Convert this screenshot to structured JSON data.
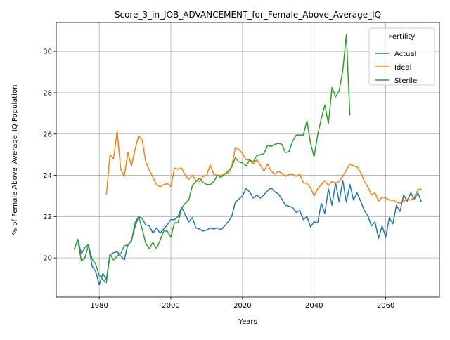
{
  "chart_data": {
    "type": "line",
    "title": "Score_3_in_JOB_ADVANCEMENT_for_Female_Above_Average_IQ",
    "xlabel": "Years",
    "ylabel": "% of Female Above_Average_IQ Population",
    "xlim": [
      1968,
      2075
    ],
    "ylim": [
      18.1,
      31.4
    ],
    "xticks": [
      1980,
      2000,
      2020,
      2040,
      2060
    ],
    "yticks": [
      20,
      22,
      24,
      26,
      28,
      30
    ],
    "grid": true,
    "legend": {
      "title": "Fertility",
      "placement": "top-right"
    },
    "series": [
      {
        "name": "Actual",
        "color": "#1f77b4",
        "x": [
          1973,
          1974,
          1975,
          1976,
          1977,
          1978,
          1979,
          1980,
          1981,
          1982,
          1983,
          1984,
          1985,
          1986,
          1987,
          1988,
          1989,
          1990,
          1991,
          1992,
          1993,
          1994,
          1995,
          1996,
          1997,
          1998,
          1999,
          2000,
          2001,
          2002,
          2003,
          2004,
          2005,
          2006,
          2007,
          2008,
          2009,
          2010,
          2011,
          2012,
          2013,
          2014,
          2015,
          2016,
          2017,
          2018,
          2019,
          2020,
          2021,
          2022,
          2023,
          2024,
          2025,
          2026,
          2027,
          2028,
          2029,
          2030,
          2031,
          2032,
          2033,
          2034,
          2035,
          2036,
          2037,
          2038,
          2039,
          2040,
          2041,
          2042,
          2043,
          2044,
          2045,
          2046,
          2047,
          2048,
          2049,
          2050,
          2051,
          2052,
          2053,
          2054,
          2055,
          2056,
          2057,
          2058,
          2059,
          2060,
          2061,
          2062,
          2063,
          2064,
          2065,
          2066,
          2067,
          2068,
          2069,
          2070
        ],
        "values": [
          20.4,
          20.9,
          20.2,
          20.5,
          20.65,
          19.6,
          19.35,
          18.7,
          19.25,
          18.95,
          20.15,
          20.25,
          20.3,
          20.1,
          19.9,
          20.65,
          20.8,
          21.7,
          22.0,
          21.9,
          21.6,
          21.55,
          21.2,
          21.45,
          21.2,
          21.4,
          21.6,
          21.85,
          21.85,
          22.0,
          22.45,
          22.1,
          21.75,
          21.95,
          21.45,
          21.4,
          21.3,
          21.35,
          21.45,
          21.4,
          21.45,
          21.35,
          21.55,
          21.75,
          22.0,
          22.7,
          22.85,
          23.0,
          23.35,
          23.2,
          22.9,
          23.05,
          22.9,
          23.05,
          23.25,
          23.4,
          23.2,
          23.1,
          22.85,
          22.55,
          22.5,
          22.45,
          22.2,
          22.3,
          21.85,
          22.0,
          21.5,
          21.75,
          21.7,
          22.65,
          22.15,
          23.35,
          22.55,
          23.65,
          22.7,
          23.75,
          22.7,
          23.55,
          22.8,
          23.15,
          22.75,
          22.3,
          22.05,
          21.55,
          21.75,
          20.95,
          21.55,
          21.0,
          21.95,
          21.65,
          22.55,
          22.25,
          23.05,
          22.75,
          23.15,
          22.85,
          23.15,
          22.7
        ]
      },
      {
        "name": "Ideal",
        "color": "#ff7f0e",
        "x": [
          1982,
          1983,
          1984,
          1985,
          1986,
          1987,
          1988,
          1989,
          1990,
          1991,
          1992,
          1993,
          1994,
          1995,
          1996,
          1997,
          1998,
          1999,
          2000,
          2001,
          2002,
          2003,
          2004,
          2005,
          2006,
          2007,
          2008,
          2009,
          2010,
          2011,
          2012,
          2013,
          2014,
          2015,
          2016,
          2017,
          2018,
          2019,
          2020,
          2021,
          2022,
          2023,
          2024,
          2025,
          2026,
          2027,
          2028,
          2029,
          2030,
          2031,
          2032,
          2033,
          2034,
          2035,
          2036,
          2037,
          2038,
          2039,
          2040,
          2041,
          2042,
          2043,
          2044,
          2045,
          2046,
          2047,
          2048,
          2049,
          2050,
          2051,
          2052,
          2053,
          2054,
          2055,
          2056,
          2057,
          2058,
          2059,
          2060,
          2061,
          2062,
          2063,
          2064,
          2065,
          2066,
          2067,
          2068,
          2069,
          2070
        ],
        "values": [
          23.05,
          25.0,
          24.8,
          26.15,
          24.3,
          23.95,
          25.1,
          24.45,
          25.25,
          25.9,
          25.7,
          24.65,
          24.25,
          23.9,
          23.55,
          23.45,
          23.55,
          23.6,
          23.45,
          24.35,
          24.3,
          24.35,
          24.0,
          23.8,
          24.0,
          23.75,
          23.7,
          23.95,
          24.0,
          24.5,
          24.05,
          24.0,
          24.0,
          24.05,
          24.1,
          24.4,
          25.35,
          25.25,
          25.05,
          24.75,
          24.75,
          24.55,
          24.75,
          24.5,
          24.2,
          24.55,
          24.2,
          24.05,
          24.2,
          24.1,
          23.95,
          24.05,
          24.05,
          23.95,
          24.05,
          23.65,
          23.6,
          23.4,
          23.0,
          23.35,
          23.55,
          23.75,
          23.5,
          23.7,
          23.6,
          23.7,
          23.95,
          24.25,
          24.55,
          24.45,
          24.4,
          24.15,
          23.7,
          23.45,
          23.05,
          23.15,
          22.75,
          22.95,
          22.9,
          22.8,
          22.8,
          22.7,
          22.65,
          22.75,
          22.85,
          22.8,
          22.95,
          23.3,
          23.35
        ]
      },
      {
        "name": "Sterile",
        "color": "#2ca02c",
        "x": [
          1973,
          1974,
          1975,
          1976,
          1977,
          1978,
          1979,
          1980,
          1981,
          1982,
          1983,
          1984,
          1985,
          1986,
          1987,
          1988,
          1989,
          1990,
          1991,
          1992,
          1993,
          1994,
          1995,
          1996,
          1997,
          1998,
          1999,
          2000,
          2001,
          2002,
          2003,
          2004,
          2005,
          2006,
          2007,
          2008,
          2009,
          2010,
          2011,
          2012,
          2013,
          2014,
          2015,
          2016,
          2017,
          2018,
          2019,
          2020,
          2021,
          2022,
          2023,
          2024,
          2025,
          2026,
          2027,
          2028,
          2029,
          2030,
          2031,
          2032,
          2033,
          2034,
          2035,
          2036,
          2037,
          2038,
          2039,
          2040,
          2041,
          2042,
          2043,
          2044,
          2045,
          2046,
          2047,
          2048,
          2049,
          2050
        ],
        "values": [
          20.4,
          20.9,
          19.85,
          20.0,
          20.6,
          19.95,
          19.7,
          19.15,
          18.95,
          18.8,
          20.2,
          19.9,
          20.1,
          20.2,
          20.6,
          20.6,
          20.85,
          21.5,
          22.0,
          21.4,
          20.7,
          20.45,
          20.75,
          20.45,
          20.85,
          21.3,
          21.3,
          21.0,
          21.7,
          21.7,
          22.4,
          22.65,
          22.8,
          23.5,
          23.7,
          23.85,
          23.65,
          23.55,
          23.55,
          23.7,
          24.0,
          23.9,
          24.05,
          24.2,
          24.4,
          24.85,
          24.65,
          24.6,
          24.45,
          24.75,
          24.65,
          24.95,
          25.0,
          25.05,
          25.45,
          25.4,
          25.5,
          25.55,
          25.5,
          25.1,
          25.15,
          25.65,
          25.95,
          25.95,
          25.95,
          26.65,
          25.55,
          24.9,
          25.95,
          26.75,
          27.4,
          26.5,
          28.25,
          27.8,
          28.1,
          29.05,
          30.8,
          26.9
        ]
      }
    ]
  }
}
